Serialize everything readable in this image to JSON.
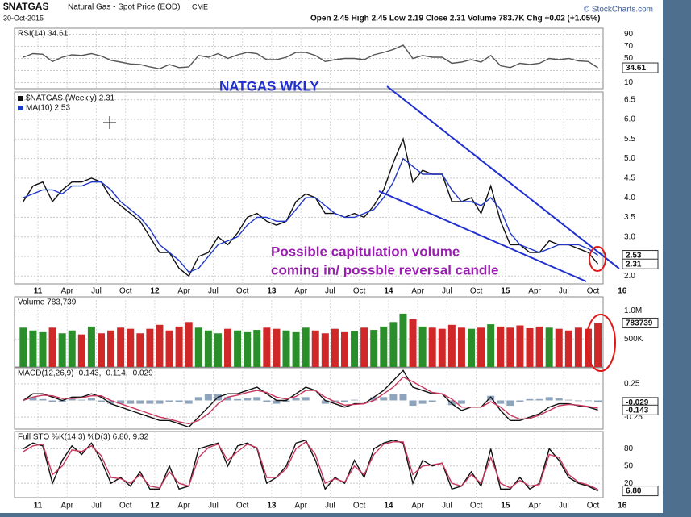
{
  "header": {
    "symbol": "$NATGAS",
    "name": "Natural Gas - Spot Price (EOD)",
    "exchange": "CME",
    "date": "30-Oct-2015",
    "quote": "Open 2.45  High 2.45  Low 2.19  Close 2.31  Volume 783.7K  Chg +0.02 (+1.05%)",
    "credit": "© StockCharts.com"
  },
  "chart_data": [
    {
      "type": "line",
      "title": "RSI(14) 34.61",
      "ylim": [
        0,
        100
      ],
      "yticks": [
        10,
        30,
        50,
        70,
        90
      ],
      "grid": true,
      "tags": [
        34.61
      ],
      "series": [
        {
          "color": "#555555",
          "values": [
            52,
            58,
            57,
            45,
            52,
            56,
            55,
            58,
            54,
            47,
            44,
            41,
            40,
            36,
            33,
            40,
            35,
            36,
            55,
            52,
            58,
            50,
            56,
            60,
            58,
            48,
            48,
            52,
            60,
            60,
            55,
            45,
            48,
            50,
            50,
            48,
            56,
            60,
            65,
            72,
            50,
            55,
            52,
            52,
            42,
            44,
            48,
            44,
            55,
            38,
            35,
            42,
            40,
            42,
            50,
            48,
            50,
            46,
            45,
            34.61
          ]
        }
      ]
    },
    {
      "type": "line",
      "ylim": [
        1.8,
        6.7
      ],
      "grid": true,
      "yticks": [
        {
          "value": 2,
          "label": "2.0"
        },
        2.5,
        {
          "value": 3,
          "label": "3.0"
        },
        3.5,
        {
          "value": 4,
          "label": "4.0"
        },
        4.5,
        {
          "value": 5,
          "label": "5.0"
        },
        5.5,
        {
          "value": 6,
          "label": "6.0"
        },
        6.5
      ],
      "tags": [
        2.53,
        2.31
      ],
      "annotations": [
        "NATGAS WKLY",
        "Possible capitulation volume",
        "coming in/ possble reversal candle"
      ],
      "x": [
        "2010-11",
        "2010-12",
        "2011-01",
        "2011-02",
        "2011-03",
        "2011-04",
        "2011-05",
        "2011-06",
        "2011-07",
        "2011-08",
        "2011-09",
        "2011-10",
        "2011-11",
        "2011-12",
        "2012-01",
        "2012-02",
        "2012-03",
        "2012-04",
        "2012-05",
        "2012-06",
        "2012-07",
        "2012-08",
        "2012-09",
        "2012-10",
        "2012-11",
        "2012-12",
        "2013-01",
        "2013-02",
        "2013-03",
        "2013-04",
        "2013-05",
        "2013-06",
        "2013-07",
        "2013-08",
        "2013-09",
        "2013-10",
        "2013-11",
        "2013-12",
        "2014-01",
        "2014-02",
        "2014-03",
        "2014-04",
        "2014-05",
        "2014-06",
        "2014-07",
        "2014-08",
        "2014-09",
        "2014-10",
        "2014-11",
        "2014-12",
        "2015-01",
        "2015-02",
        "2015-03",
        "2015-04",
        "2015-05",
        "2015-06",
        "2015-07",
        "2015-08",
        "2015-09",
        "2015-10"
      ],
      "xticks": [
        {
          "value": "2011-01",
          "label": "11"
        },
        {
          "value": "2011-04",
          "label": "Apr"
        },
        {
          "value": "2011-07",
          "label": "Jul"
        },
        {
          "value": "2011-10",
          "label": "Oct"
        },
        {
          "value": "2012-01",
          "label": "12"
        },
        {
          "value": "2012-04",
          "label": "Apr"
        },
        {
          "value": "2012-07",
          "label": "Jul"
        },
        {
          "value": "2012-10",
          "label": "Oct"
        },
        {
          "value": "2013-01",
          "label": "13"
        },
        {
          "value": "2013-04",
          "label": "Apr"
        },
        {
          "value": "2013-07",
          "label": "Jul"
        },
        {
          "value": "2013-10",
          "label": "Oct"
        },
        {
          "value": "2014-01",
          "label": "14"
        },
        {
          "value": "2014-04",
          "label": "Apr"
        },
        {
          "value": "2014-07",
          "label": "Jul"
        },
        {
          "value": "2014-10",
          "label": "Oct"
        },
        {
          "value": "2015-01",
          "label": "15"
        },
        {
          "value": "2015-04",
          "label": "Apr"
        },
        {
          "value": "2015-07",
          "label": "Jul"
        },
        {
          "value": "2015-10",
          "label": "Oct"
        },
        {
          "value": "2016-01",
          "label": "16"
        }
      ],
      "series": [
        {
          "name": "$NATGAS (Weekly) 2.31",
          "color": "#111111",
          "values": [
            3.9,
            4.3,
            4.4,
            3.9,
            4.2,
            4.4,
            4.4,
            4.5,
            4.4,
            4.0,
            3.8,
            3.6,
            3.4,
            3.0,
            2.6,
            2.6,
            2.2,
            2.0,
            2.5,
            2.6,
            3.0,
            2.8,
            3.1,
            3.5,
            3.6,
            3.4,
            3.3,
            3.4,
            3.9,
            4.1,
            4.0,
            3.6,
            3.6,
            3.5,
            3.6,
            3.5,
            3.8,
            4.2,
            4.9,
            5.5,
            4.4,
            4.7,
            4.6,
            4.6,
            3.9,
            3.9,
            4.0,
            3.6,
            4.3,
            3.4,
            2.8,
            2.8,
            2.6,
            2.6,
            2.9,
            2.8,
            2.8,
            2.7,
            2.6,
            2.31
          ]
        },
        {
          "name": "MA(10) 2.53",
          "color": "#2238c8",
          "values": [
            4.0,
            4.1,
            4.2,
            4.2,
            4.1,
            4.3,
            4.3,
            4.4,
            4.4,
            4.2,
            3.9,
            3.7,
            3.5,
            3.2,
            2.8,
            2.6,
            2.4,
            2.1,
            2.2,
            2.5,
            2.8,
            2.9,
            3.0,
            3.3,
            3.5,
            3.5,
            3.4,
            3.4,
            3.7,
            4.0,
            4.0,
            3.8,
            3.6,
            3.5,
            3.5,
            3.6,
            3.7,
            4.0,
            4.4,
            5.0,
            4.8,
            4.6,
            4.6,
            4.6,
            4.2,
            3.9,
            3.9,
            3.8,
            4.0,
            3.7,
            3.1,
            2.8,
            2.7,
            2.6,
            2.7,
            2.8,
            2.8,
            2.8,
            2.7,
            2.53
          ]
        }
      ]
    },
    {
      "type": "bar",
      "title": "Volume 783,739",
      "ylim": [
        0,
        1250000
      ],
      "grid": true,
      "yticks": [
        {
          "value": 500000,
          "label": "500K"
        },
        {
          "value": 1000000,
          "label": "1.0M"
        }
      ],
      "tags": [
        783739
      ],
      "series": [
        {
          "values": [
            700000,
            650000,
            620000,
            700000,
            600000,
            650000,
            580000,
            720000,
            600000,
            650000,
            700000,
            680000,
            600000,
            680000,
            750000,
            650000,
            720000,
            800000,
            700000,
            650000,
            600000,
            680000,
            650000,
            620000,
            660000,
            700000,
            680000,
            650000,
            620000,
            700000,
            650000,
            600000,
            680000,
            620000,
            640000,
            700000,
            660000,
            720000,
            800000,
            950000,
            850000,
            720000,
            700000,
            680000,
            750000,
            700000,
            680000,
            700000,
            760000,
            720000,
            700000,
            740000,
            690000,
            720000,
            700000,
            680000,
            650000,
            700000,
            680000,
            783739
          ],
          "colors": [
            "#2a8f2a",
            "#2a8f2a",
            "#2a8f2a",
            "#d02828",
            "#2a8f2a",
            "#2a8f2a",
            "#d02828",
            "#2a8f2a",
            "#d02828",
            "#d02828",
            "#d02828",
            "#d02828",
            "#d02828",
            "#d02828",
            "#d02828",
            "#d02828",
            "#d02828",
            "#d02828",
            "#2a8f2a",
            "#2a8f2a",
            "#2a8f2a",
            "#d02828",
            "#2a8f2a",
            "#2a8f2a",
            "#2a8f2a",
            "#d02828",
            "#d02828",
            "#2a8f2a",
            "#2a8f2a",
            "#2a8f2a",
            "#d02828",
            "#d02828",
            "#d02828",
            "#d02828",
            "#2a8f2a",
            "#d02828",
            "#2a8f2a",
            "#2a8f2a",
            "#2a8f2a",
            "#2a8f2a",
            "#d02828",
            "#2a8f2a",
            "#d02828",
            "#d02828",
            "#d02828",
            "#d02828",
            "#2a8f2a",
            "#d02828",
            "#2a8f2a",
            "#d02828",
            "#d02828",
            "#d02828",
            "#d02828",
            "#d02828",
            "#2a8f2a",
            "#d02828",
            "#d02828",
            "#d02828",
            "#d02828",
            "#d02828"
          ]
        }
      ]
    },
    {
      "type": "line",
      "title": "MACD(12,26,9) -0.143, -0.114, -0.029",
      "ylim": [
        -0.43,
        0.49
      ],
      "grid": true,
      "yticks": [
        -0.25,
        0.25
      ],
      "tags": [
        -0.029,
        -0.143
      ],
      "series": [
        {
          "type": "bar",
          "color": "#8ea4bc",
          "values": [
            0,
            0.05,
            0.02,
            -0.02,
            -0.03,
            0.02,
            0.01,
            0.03,
            -0.02,
            -0.05,
            -0.05,
            -0.05,
            -0.05,
            -0.05,
            -0.05,
            -0.02,
            -0.03,
            -0.05,
            0.05,
            0.1,
            0.1,
            0.05,
            0.02,
            0.03,
            0.05,
            -0.02,
            -0.05,
            -0.02,
            0.04,
            0.05,
            0,
            -0.05,
            -0.03,
            -0.03,
            0.01,
            0,
            0.05,
            0.05,
            0.1,
            0.1,
            -0.08,
            -0.05,
            -0.02,
            0,
            -0.07,
            -0.05,
            0,
            0,
            0.07,
            -0.05,
            -0.08,
            -0.02,
            0.02,
            0.02,
            0.05,
            0.03,
            0.01,
            -0.01,
            -0.01,
            -0.029
          ]
        },
        {
          "color": "#111111",
          "values": [
            0.0,
            0.1,
            0.1,
            0.05,
            0.0,
            0.05,
            0.05,
            0.1,
            0.05,
            -0.05,
            -0.1,
            -0.15,
            -0.2,
            -0.25,
            -0.3,
            -0.3,
            -0.35,
            -0.4,
            -0.25,
            -0.1,
            0.05,
            0.1,
            0.1,
            0.15,
            0.2,
            0.1,
            0.0,
            0.0,
            0.1,
            0.2,
            0.15,
            0.0,
            -0.05,
            -0.1,
            -0.05,
            -0.05,
            0.05,
            0.15,
            0.3,
            0.45,
            0.2,
            0.15,
            0.1,
            0.1,
            -0.05,
            -0.15,
            -0.1,
            -0.1,
            0.05,
            -0.15,
            -0.3,
            -0.3,
            -0.25,
            -0.2,
            -0.1,
            -0.05,
            -0.05,
            -0.08,
            -0.1,
            -0.143
          ]
        },
        {
          "color": "#c8385e",
          "values": [
            0.0,
            0.05,
            0.08,
            0.07,
            0.03,
            0.03,
            0.04,
            0.07,
            0.07,
            0.0,
            -0.05,
            -0.1,
            -0.15,
            -0.2,
            -0.25,
            -0.28,
            -0.32,
            -0.35,
            -0.3,
            -0.2,
            -0.05,
            0.05,
            0.08,
            0.12,
            0.15,
            0.12,
            0.05,
            0.02,
            0.06,
            0.15,
            0.15,
            0.05,
            -0.02,
            -0.07,
            -0.06,
            -0.05,
            0.0,
            0.1,
            0.2,
            0.35,
            0.28,
            0.2,
            0.12,
            0.1,
            0.02,
            -0.1,
            -0.1,
            -0.1,
            -0.02,
            -0.1,
            -0.22,
            -0.28,
            -0.27,
            -0.22,
            -0.15,
            -0.08,
            -0.06,
            -0.07,
            -0.09,
            -0.114
          ]
        }
      ]
    },
    {
      "type": "line",
      "title": "Full STO %K(14,3) %D(3) 6.80, 9.32",
      "ylim": [
        -5,
        110
      ],
      "grid": true,
      "yticks": [
        20,
        50,
        80
      ],
      "tags": [
        {
          "value": 6.8,
          "label": "6.80"
        }
      ],
      "series": [
        {
          "color": "#111111",
          "values": [
            80,
            90,
            85,
            20,
            60,
            85,
            70,
            90,
            60,
            20,
            30,
            15,
            40,
            10,
            10,
            50,
            10,
            15,
            80,
            85,
            90,
            50,
            85,
            90,
            80,
            20,
            30,
            50,
            90,
            95,
            60,
            10,
            30,
            20,
            60,
            30,
            80,
            90,
            95,
            90,
            20,
            60,
            50,
            55,
            10,
            15,
            40,
            15,
            80,
            10,
            10,
            30,
            10,
            20,
            80,
            60,
            30,
            20,
            15,
            6.8
          ]
        },
        {
          "color": "#c8385e",
          "values": [
            75,
            85,
            88,
            35,
            50,
            78,
            75,
            85,
            68,
            30,
            28,
            20,
            35,
            15,
            12,
            40,
            20,
            15,
            65,
            82,
            88,
            60,
            75,
            88,
            82,
            30,
            30,
            45,
            80,
            92,
            70,
            20,
            28,
            22,
            50,
            35,
            70,
            88,
            92,
            92,
            35,
            50,
            52,
            55,
            20,
            15,
            35,
            20,
            65,
            20,
            12,
            25,
            15,
            18,
            70,
            65,
            35,
            22,
            17,
            9.32
          ]
        }
      ]
    }
  ]
}
